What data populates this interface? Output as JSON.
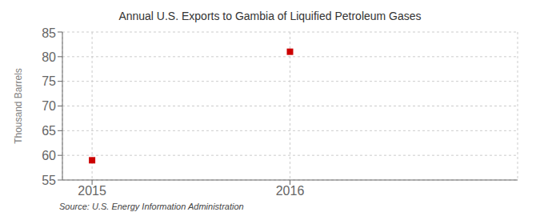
{
  "chart_data": {
    "type": "scatter",
    "title": "Annual U.S. Exports to Gambia of Liquified Petroleum Gases",
    "ylabel": "Thousand Barrels",
    "source": "Source: U.S. Energy Information Administration",
    "x": [
      2015,
      2016
    ],
    "values": [
      59,
      81
    ],
    "color": "#cc0000",
    "marker": "square",
    "xlim": [
      2014.85,
      2017.15
    ],
    "xticks": [
      2015,
      2016
    ],
    "ylim": [
      55,
      85
    ],
    "yticks": [
      55,
      60,
      65,
      70,
      75,
      80,
      85
    ],
    "grid": true
  }
}
